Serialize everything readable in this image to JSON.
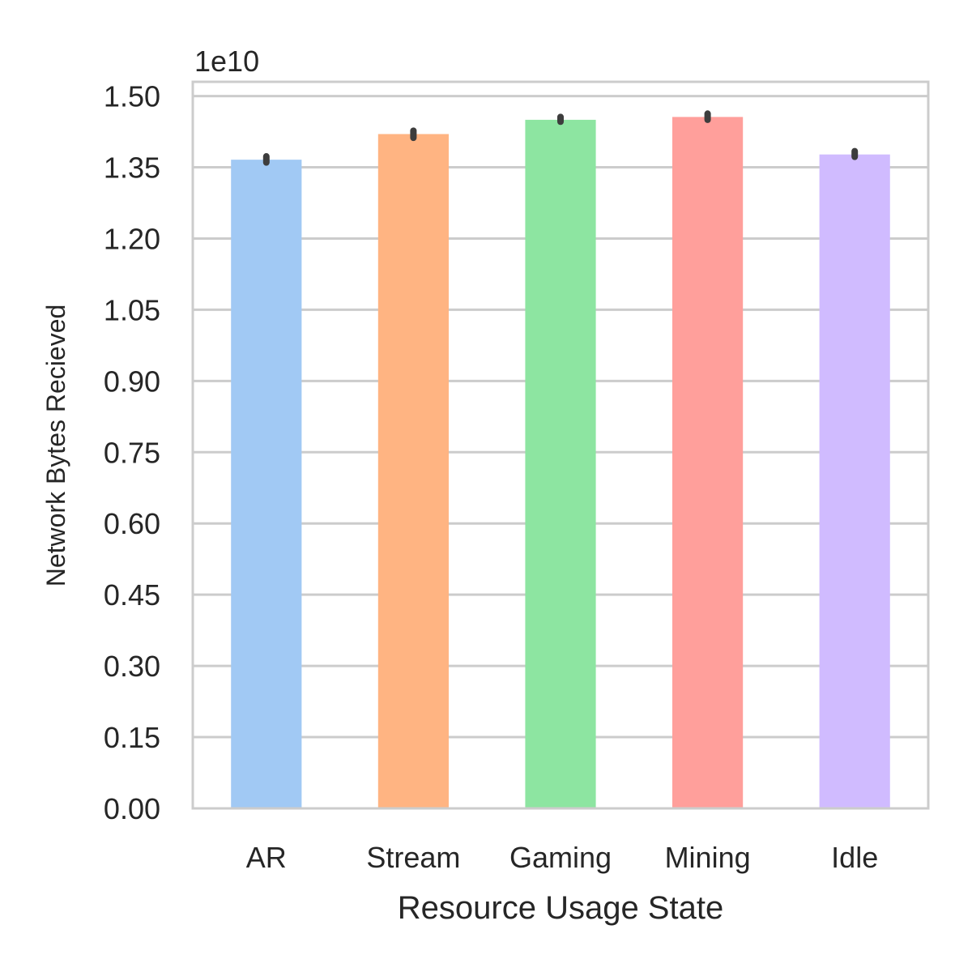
{
  "chart_data": {
    "type": "bar",
    "xlabel": "Resource Usage State",
    "ylabel": "Network Bytes Recieved",
    "scale_label": "1e10",
    "categories": [
      "AR",
      "Stream",
      "Gaming",
      "Mining",
      "Idle"
    ],
    "values": [
      1.366,
      1.42,
      1.45,
      1.456,
      1.377
    ],
    "error_low": [
      1.36,
      1.412,
      1.446,
      1.45,
      1.372
    ],
    "error_high": [
      1.373,
      1.427,
      1.456,
      1.463,
      1.384
    ],
    "colors": [
      "#a1c9f4",
      "#ffb482",
      "#8de5a1",
      "#ff9f9b",
      "#d0bbff"
    ],
    "ylim": [
      0,
      1.53
    ],
    "yticks": [
      "0.00",
      "0.15",
      "0.30",
      "0.45",
      "0.60",
      "0.75",
      "0.90",
      "1.05",
      "1.20",
      "1.35",
      "1.50"
    ],
    "grid": true,
    "legend": "none"
  }
}
